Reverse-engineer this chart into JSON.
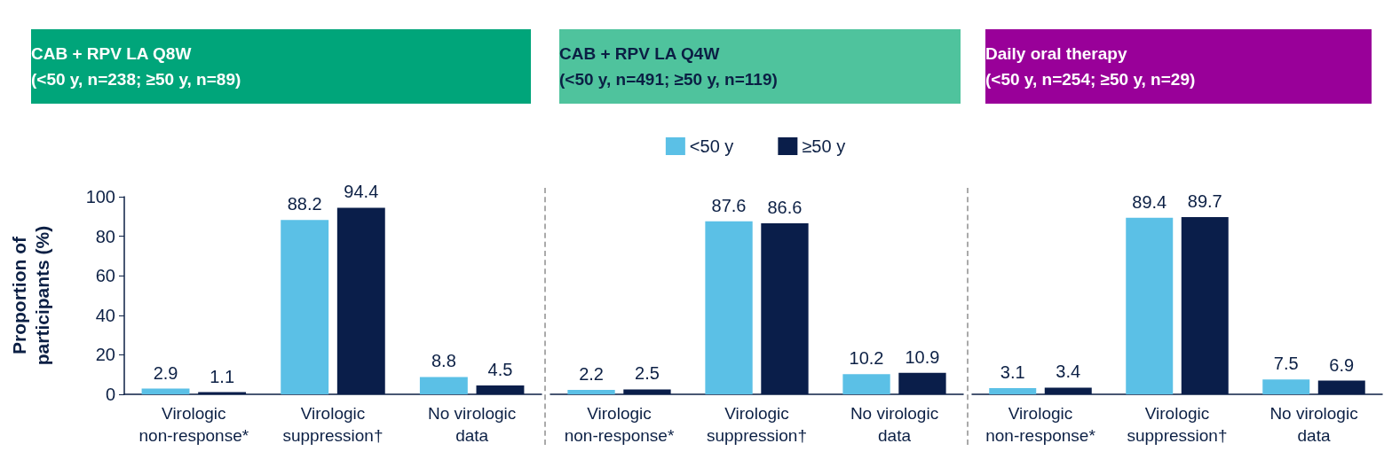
{
  "chart_data": [
    {
      "type": "bar",
      "title": "CAB + RPV LA Q8W\n(<50 y, n=238; ≥50 y, n=89)",
      "ylabel": "Proportion of\nparticipants (%)",
      "categories": [
        "Virologic\nnon-response*",
        "Virologic\nsuppression†",
        "No virologic\ndata"
      ],
      "series": [
        {
          "color": "#5bc0e6",
          "values": [
            2.9,
            88.2,
            8.8
          ]
        },
        {
          "color": "#0a1e4a",
          "values": [
            1.1,
            94.4,
            4.5
          ]
        }
      ],
      "ylim": [
        0,
        100
      ],
      "yticks": [
        0,
        20,
        40,
        60,
        80,
        100
      ],
      "data_labels": true,
      "grid": false,
      "legend": false
    },
    {
      "type": "bar",
      "title": "CAB + RPV LA Q4W\n(<50 y, n=491; ≥50 y, n=119)",
      "categories": [
        "Virologic\nnon-response*",
        "Virologic\nsuppression†",
        "No virologic\ndata"
      ],
      "series": [
        {
          "name": "<50 y",
          "color": "#5bc0e6",
          "values": [
            2.2,
            87.6,
            10.2
          ]
        },
        {
          "name": "≥50 y",
          "color": "#0a1e4a",
          "values": [
            2.5,
            86.6,
            10.9
          ]
        }
      ],
      "ylim": [
        0,
        100
      ],
      "yticks": [
        0,
        20,
        40,
        60,
        80,
        100
      ],
      "tick_labels": "x",
      "data_labels": true,
      "grid": false,
      "legend": "top"
    },
    {
      "type": "bar",
      "title": "Daily oral therapy\n(<50 y, n=254; ≥50 y, n=29)",
      "categories": [
        "Virologic\nnon-response*",
        "Virologic\nsuppression†",
        "No virologic\ndata"
      ],
      "series": [
        {
          "color": "#5bc0e6",
          "values": [
            3.1,
            89.4,
            7.5
          ]
        },
        {
          "color": "#0a1e4a",
          "values": [
            3.4,
            89.7,
            6.9
          ]
        }
      ],
      "ylim": [
        0,
        100
      ],
      "yticks": [
        0,
        20,
        40,
        60,
        80,
        100
      ],
      "tick_labels": "x",
      "data_labels": true,
      "grid": false,
      "legend": false
    }
  ]
}
